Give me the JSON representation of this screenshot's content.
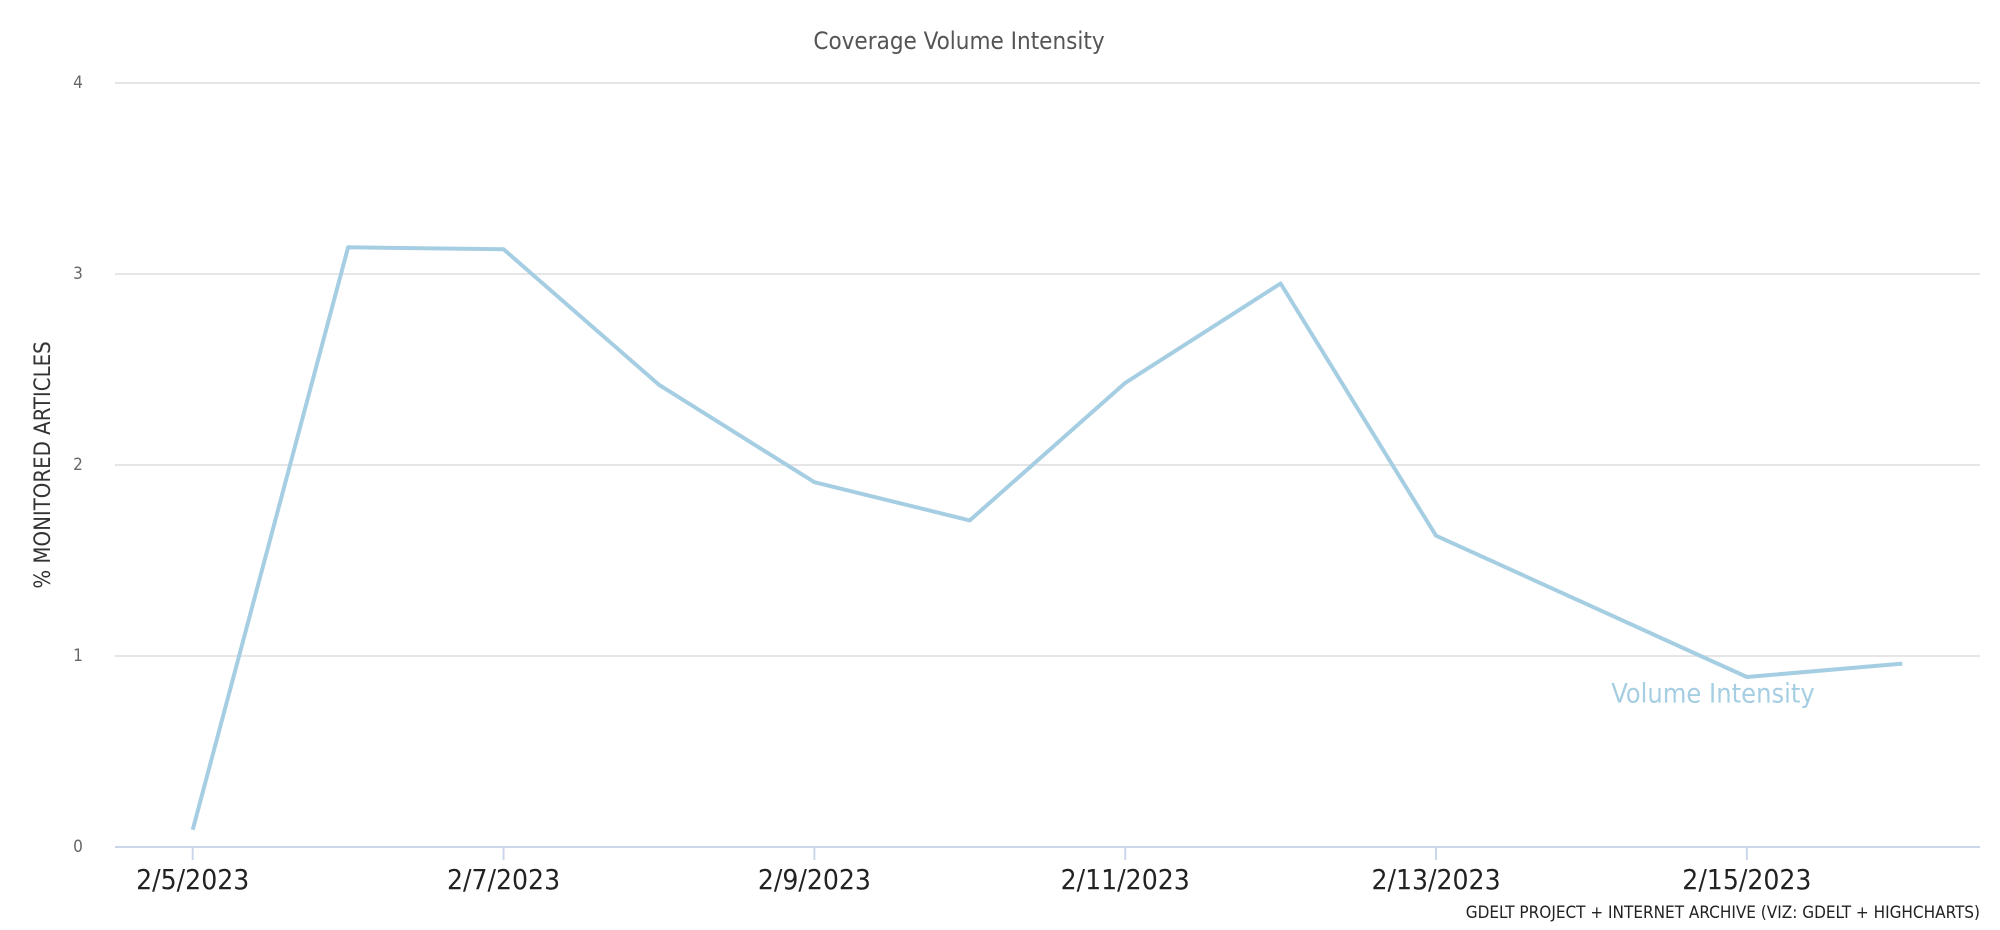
{
  "chart_data": {
    "type": "line",
    "title": "Coverage Volume Intensity",
    "y_label": "% MONITORED ARTICLES",
    "credit": "GDELT PROJECT + INTERNET ARCHIVE (VIZ: GDELT + HIGHCHARTS)",
    "categories": [
      "2/5/2023",
      null,
      "2/7/2023",
      null,
      "2/9/2023",
      null,
      "2/11/2023",
      null,
      "2/13/2023",
      null,
      "2/15/2023",
      null
    ],
    "series": [
      {
        "name": "Volume Intensity",
        "color": "#a6cee3",
        "values": [
          0.09,
          3.14,
          3.13,
          2.42,
          1.91,
          1.71,
          2.43,
          2.95,
          1.63,
          1.26,
          0.89,
          0.96
        ]
      }
    ],
    "ylim": [
      0,
      4
    ],
    "yticks": [
      0,
      1,
      2,
      3,
      4
    ],
    "grid": true
  }
}
